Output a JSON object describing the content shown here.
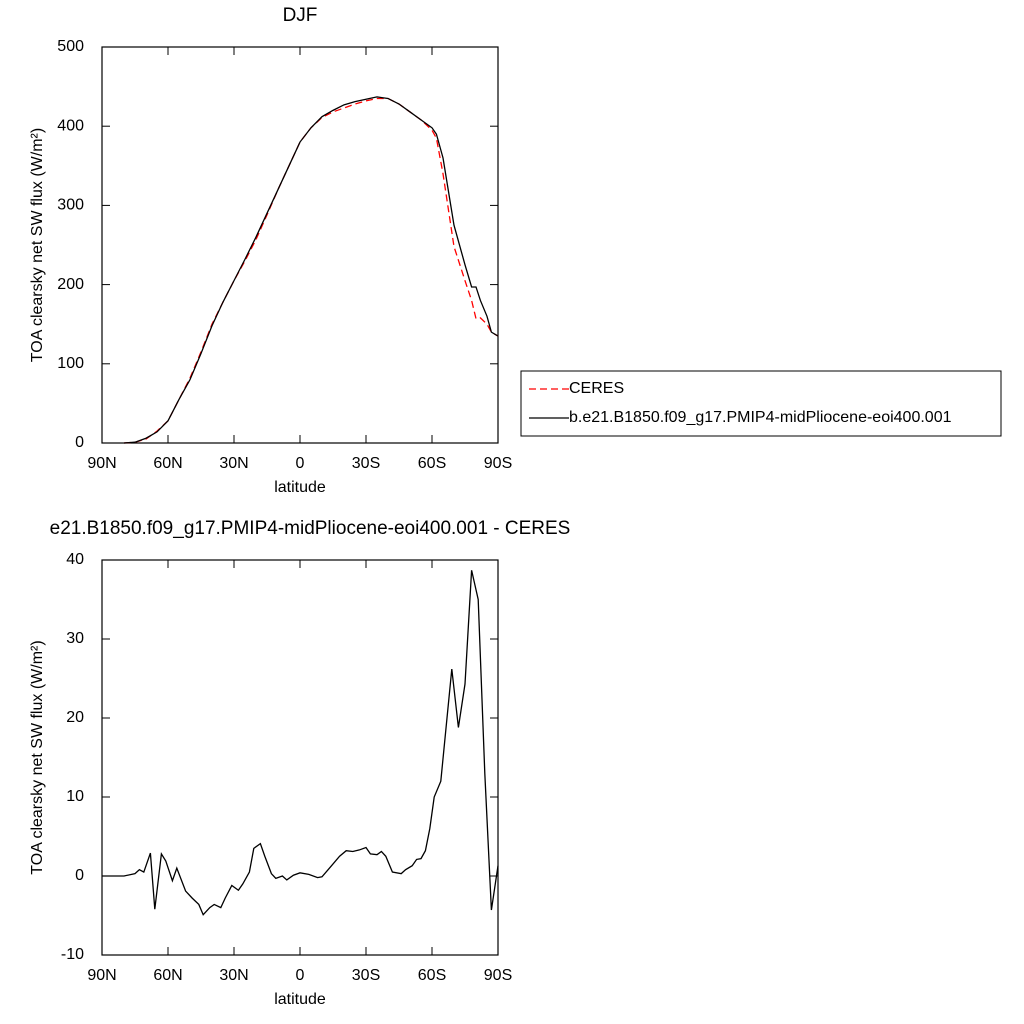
{
  "chart_data": [
    {
      "type": "line",
      "title": "DJF",
      "x_label": "latitude",
      "y_label": "TOA clearsky net SW flux (W/m²)",
      "x": [
        80,
        75,
        70,
        65,
        60,
        55,
        50,
        45,
        40,
        35,
        30,
        25,
        20,
        15,
        10,
        5,
        0,
        -5,
        -10,
        -15,
        -20,
        -25,
        -30,
        -35,
        -40,
        -45,
        -50,
        -55,
        -60,
        -62,
        -65,
        -70,
        -75,
        -78,
        -80,
        -82,
        -85,
        -87,
        -90
      ],
      "series": [
        {
          "name": "CERES",
          "color": "#ff0000",
          "dash": true,
          "values": [
            0,
            1,
            5,
            15,
            28,
            55,
            82,
            115,
            150,
            178,
            205,
            230,
            257,
            288,
            320,
            350,
            380,
            398,
            411,
            418,
            423,
            428,
            432,
            435,
            435,
            428,
            418,
            408,
            395,
            385,
            340,
            248,
            205,
            180,
            157,
            158,
            150,
            140,
            135
          ]
        },
        {
          "name": "b.e21.B1850.f09_g17.PMIP4-midPliocene-eoi400.001",
          "color": "#000000",
          "dash": false,
          "values": [
            0,
            1,
            6,
            14,
            28,
            55,
            80,
            113,
            148,
            178,
            205,
            232,
            260,
            290,
            320,
            350,
            380,
            398,
            412,
            420,
            427,
            431,
            434,
            437,
            435,
            428,
            418,
            408,
            398,
            390,
            360,
            275,
            225,
            197,
            197,
            180,
            160,
            140,
            135
          ]
        }
      ],
      "xlim": [
        90,
        -90
      ],
      "xticks": [
        {
          "value": 90,
          "label": "90N"
        },
        {
          "value": 60,
          "label": "60N"
        },
        {
          "value": 30,
          "label": "30N"
        },
        0,
        {
          "value": -30,
          "label": "30S"
        },
        {
          "value": -60,
          "label": "60S"
        },
        {
          "value": -90,
          "label": "90S"
        }
      ],
      "ylim": [
        0,
        500
      ],
      "yticks": [
        0,
        100,
        200,
        300,
        400,
        500
      ],
      "legend": "right"
    },
    {
      "type": "line",
      "title": "e21.B1850.f09_g17.PMIP4-midPliocene-eoi400.001 - CERES",
      "x_label": "latitude",
      "y_label": "TOA clearsky net SW flux (W/m²)",
      "x": [
        90,
        80,
        75,
        73,
        71,
        68,
        66,
        63,
        61,
        58,
        56,
        52,
        49,
        46,
        44,
        41,
        39,
        36,
        34,
        31,
        28,
        26,
        23,
        21,
        18,
        16,
        13,
        11,
        8,
        6,
        3,
        0,
        -4,
        -8,
        -10,
        -14,
        -18,
        -21,
        -24,
        -27,
        -30,
        -32,
        -35,
        -37,
        -39,
        -42,
        -46,
        -48,
        -51,
        -53,
        -55,
        -57,
        -59,
        -61,
        -64,
        -69,
        -72,
        -75,
        -78,
        -81,
        -84,
        -87,
        -90
      ],
      "series": [
        {
          "color": "#000000",
          "dash": false,
          "values": [
            0,
            0,
            0.3,
            0.8,
            0.5,
            2.9,
            -4.2,
            2.8,
            1.9,
            -0.6,
            1.0,
            -1.9,
            -2.8,
            -3.6,
            -4.9,
            -4.0,
            -3.6,
            -4.0,
            -2.8,
            -1.2,
            -1.8,
            -1.0,
            0.5,
            3.5,
            4.1,
            2.5,
            0.3,
            -0.3,
            0,
            -0.5,
            0.1,
            0.4,
            0.2,
            -0.2,
            -0.1,
            1.2,
            2.5,
            3.2,
            3.1,
            3.3,
            3.6,
            2.8,
            2.7,
            3.1,
            2.5,
            0.5,
            0.3,
            0.8,
            1.3,
            2.1,
            2.2,
            3.2,
            6,
            10,
            12,
            26.2,
            18.8,
            24.3,
            38.7,
            35,
            13,
            -4.3,
            1.3
          ]
        }
      ],
      "xlim": [
        90,
        -90
      ],
      "xticks": [
        {
          "value": 90,
          "label": "90N"
        },
        {
          "value": 60,
          "label": "60N"
        },
        {
          "value": 30,
          "label": "30N"
        },
        0,
        {
          "value": -30,
          "label": "30S"
        },
        {
          "value": -60,
          "label": "60S"
        },
        {
          "value": -90,
          "label": "90S"
        }
      ],
      "ylim": [
        -10,
        40
      ],
      "yticks": [
        -10,
        0,
        10,
        20,
        30,
        40
      ]
    }
  ]
}
